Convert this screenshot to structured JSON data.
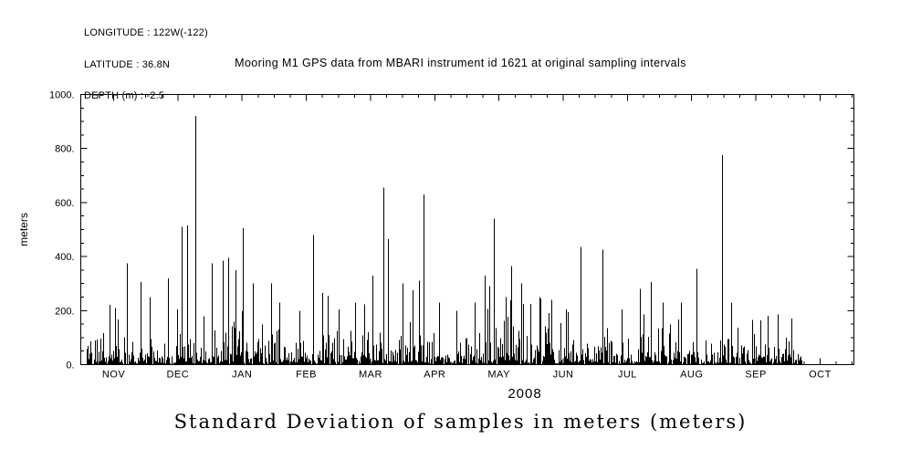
{
  "page": {
    "background": "#ffffff",
    "text_color": "#000000"
  },
  "header": {
    "longitude": "LONGITUDE : 122W(-122)",
    "latitude": "LATITUDE : 36.8N",
    "depth": "DEPTH (m) : -2.5"
  },
  "title": "Mooring M1 GPS data from MBARI instrument id 1621 at original sampling intervals",
  "caption": "Standard Deviation of samples in meters (meters)",
  "chart_data": {
    "type": "line",
    "title": "Mooring M1 GPS data from MBARI instrument id 1621 at original sampling intervals",
    "xlabel": "2008",
    "ylabel": "meters",
    "ylim": [
      0,
      1000
    ],
    "grid": false,
    "legend": "none",
    "y_ticks": [
      "0.",
      "200.",
      "400.",
      "600.",
      "800.",
      "1000."
    ],
    "y_tick_values": [
      0,
      200,
      400,
      600,
      800,
      1000
    ],
    "x_ticks": [
      "NOV",
      "DEC",
      "JAN",
      "FEB",
      "MAR",
      "APR",
      "MAY",
      "JUN",
      "JUL",
      "AUG",
      "SEP",
      "OCT"
    ],
    "series": [
      {
        "name": "gps-position-standard-deviation",
        "color": "#000000",
        "style": "vertical-spikes"
      }
    ],
    "data_start_frac": 0.008,
    "data_end_frac": 0.935,
    "baseline_noise": {
      "distribution": "exponential",
      "mean_m": 42,
      "typical_band_max_m": 220,
      "seed": 42,
      "description": "dense noisy band mostly 0-150 m across the whole record"
    },
    "peaks_frac_value": [
      [
        0.044,
        210
      ],
      [
        0.06,
        375
      ],
      [
        0.077,
        305
      ],
      [
        0.089,
        250
      ],
      [
        0.113,
        320
      ],
      [
        0.124,
        205
      ],
      [
        0.131,
        510
      ],
      [
        0.138,
        515
      ],
      [
        0.148,
        920
      ],
      [
        0.17,
        375
      ],
      [
        0.184,
        385
      ],
      [
        0.191,
        395
      ],
      [
        0.2,
        350
      ],
      [
        0.209,
        505
      ],
      [
        0.222,
        300
      ],
      [
        0.246,
        300
      ],
      [
        0.257,
        230
      ],
      [
        0.283,
        200
      ],
      [
        0.301,
        480
      ],
      [
        0.312,
        265
      ],
      [
        0.319,
        255
      ],
      [
        0.333,
        205
      ],
      [
        0.355,
        230
      ],
      [
        0.377,
        330
      ],
      [
        0.391,
        655
      ],
      [
        0.397,
        465
      ],
      [
        0.416,
        300
      ],
      [
        0.437,
        310
      ],
      [
        0.443,
        630
      ],
      [
        0.463,
        230
      ],
      [
        0.486,
        200
      ],
      [
        0.51,
        230
      ],
      [
        0.522,
        330
      ],
      [
        0.528,
        290
      ],
      [
        0.534,
        540
      ],
      [
        0.549,
        250
      ],
      [
        0.557,
        365
      ],
      [
        0.57,
        300
      ],
      [
        0.593,
        250
      ],
      [
        0.609,
        240
      ],
      [
        0.628,
        205
      ],
      [
        0.646,
        435
      ],
      [
        0.675,
        425
      ],
      [
        0.699,
        205
      ],
      [
        0.723,
        280
      ],
      [
        0.737,
        305
      ],
      [
        0.753,
        230
      ],
      [
        0.776,
        230
      ],
      [
        0.796,
        355
      ],
      [
        0.829,
        775
      ],
      [
        0.841,
        230
      ],
      [
        0.868,
        165
      ],
      [
        0.888,
        180
      ],
      [
        0.902,
        185
      ],
      [
        0.919,
        170
      ]
    ]
  }
}
